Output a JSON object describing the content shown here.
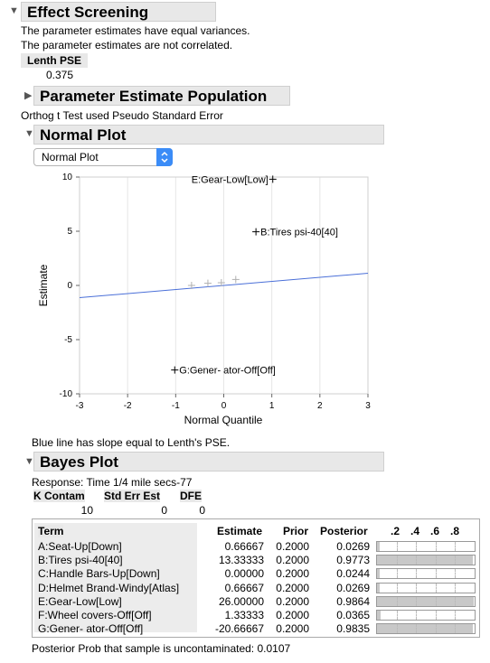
{
  "effect_screening": {
    "title": "Effect Screening",
    "note1": "The parameter estimates have equal variances.",
    "note2": "The parameter estimates are not correlated.",
    "lenth_label": "Lenth PSE",
    "lenth_value": "0.375"
  },
  "param_pop": {
    "title": "Parameter Estimate Population",
    "note": "Orthog t Test used Pseudo Standard Error"
  },
  "normal_plot": {
    "title": "Normal Plot",
    "dropdown_value": "Normal Plot",
    "footnote": "Blue line has slope equal to Lenth's PSE."
  },
  "chart_data": {
    "type": "scatter",
    "xlabel": "Normal Quantile",
    "ylabel": "Estimate",
    "xlim": [
      -3,
      3
    ],
    "ylim": [
      -10,
      10
    ],
    "x_ticks": [
      "-3",
      "-2",
      "-1",
      "0",
      "1",
      "2",
      "3"
    ],
    "y_ticks": [
      "10",
      "5",
      "0",
      "-5",
      "-10"
    ],
    "line": {
      "slope": 0.375,
      "intercept": 0,
      "color": "#4a6fd8"
    },
    "points": [
      {
        "x": -0.67,
        "y": 0,
        "label": ""
      },
      {
        "x": -0.33,
        "y": 0.2,
        "label": ""
      },
      {
        "x": -0.05,
        "y": 0.25,
        "label": ""
      },
      {
        "x": 0.25,
        "y": 0.55,
        "label": ""
      }
    ],
    "labeled_points": [
      {
        "x": 1.02,
        "y": 9.8,
        "label": "E:Gear-Low[Low]",
        "side": "left"
      },
      {
        "x": 0.67,
        "y": 4.95,
        "label": "B:Tires psi-40[40]",
        "side": "right"
      },
      {
        "x": -1.02,
        "y": -7.8,
        "label": "G:Gener- ator-Off[Off]",
        "side": "right"
      }
    ]
  },
  "bayes_plot": {
    "title": "Bayes Plot",
    "response": "Response:  Time 1/4 mile secs-77",
    "headers": {
      "k_contam": "K Contam",
      "std_err": "Std Err Est",
      "dfe": "DFE"
    },
    "values": {
      "k_contam": "10",
      "std_err": "0",
      "dfe": "0"
    },
    "table_headers": {
      "term": "Term",
      "estimate": "Estimate",
      "prior": "Prior",
      "posterior": "Posterior"
    },
    "axis_ticks": [
      ".2",
      ".4",
      ".6",
      ".8"
    ],
    "rows": [
      {
        "term": "A:Seat-Up[Down]",
        "estimate": "0.66667",
        "prior": "0.2000",
        "posterior": "0.0269",
        "p": 0.0269
      },
      {
        "term": "B:Tires psi-40[40]",
        "estimate": "13.33333",
        "prior": "0.2000",
        "posterior": "0.9773",
        "p": 0.9773
      },
      {
        "term": "C:Handle Bars-Up[Down]",
        "estimate": "0.00000",
        "prior": "0.2000",
        "posterior": "0.0244",
        "p": 0.0244
      },
      {
        "term": "D:Helmet Brand-Windy[Atlas]",
        "estimate": "0.66667",
        "prior": "0.2000",
        "posterior": "0.0269",
        "p": 0.0269
      },
      {
        "term": "E:Gear-Low[Low]",
        "estimate": "26.00000",
        "prior": "0.2000",
        "posterior": "0.9864",
        "p": 0.9864
      },
      {
        "term": "F:Wheel covers-Off[Off]",
        "estimate": "1.33333",
        "prior": "0.2000",
        "posterior": "0.0365",
        "p": 0.0365
      },
      {
        "term": "G:Gener- ator-Off[Off]",
        "estimate": "-20.66667",
        "prior": "0.2000",
        "posterior": "0.9835",
        "p": 0.9835
      }
    ],
    "footer": "Posterior Prob that sample is uncontaminated: 0.0107"
  }
}
